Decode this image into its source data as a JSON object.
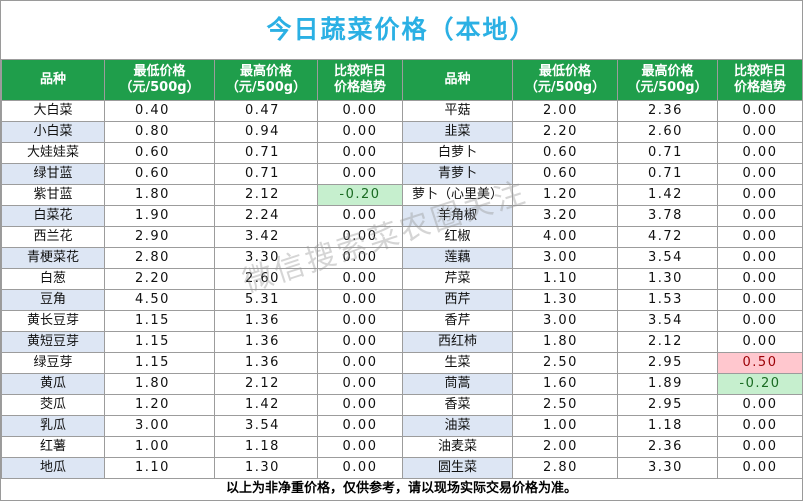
{
  "title": "今日蔬菜价格（本地）",
  "headers": {
    "name": "品种",
    "low": [
      "最低价格",
      "（元/500g）"
    ],
    "high": [
      "最高价格",
      "（元/500g）"
    ],
    "trend": [
      "比较昨日",
      "价格趋势"
    ]
  },
  "left": [
    {
      "name": "大白菜",
      "low": "0.40",
      "high": "0.47",
      "trend": "0.00"
    },
    {
      "name": "小白菜",
      "low": "0.80",
      "high": "0.94",
      "trend": "0.00"
    },
    {
      "name": "大娃娃菜",
      "low": "0.60",
      "high": "0.71",
      "trend": "0.00"
    },
    {
      "name": "绿甘蓝",
      "low": "0.60",
      "high": "0.71",
      "trend": "0.00"
    },
    {
      "name": "紫甘蓝",
      "low": "1.80",
      "high": "2.12",
      "trend": "-0.20"
    },
    {
      "name": "白菜花",
      "low": "1.90",
      "high": "2.24",
      "trend": "0.00"
    },
    {
      "name": "西兰花",
      "low": "2.90",
      "high": "3.42",
      "trend": "0.00"
    },
    {
      "name": "青梗菜花",
      "low": "2.80",
      "high": "3.30",
      "trend": "0.00"
    },
    {
      "name": "白葱",
      "low": "2.20",
      "high": "2.60",
      "trend": "0.00"
    },
    {
      "name": "豆角",
      "low": "4.50",
      "high": "5.31",
      "trend": "0.00"
    },
    {
      "name": "黄长豆芽",
      "low": "1.15",
      "high": "1.36",
      "trend": "0.00"
    },
    {
      "name": "黄短豆芽",
      "low": "1.15",
      "high": "1.36",
      "trend": "0.00"
    },
    {
      "name": "绿豆芽",
      "low": "1.15",
      "high": "1.36",
      "trend": "0.00"
    },
    {
      "name": "黄瓜",
      "low": "1.80",
      "high": "2.12",
      "trend": "0.00"
    },
    {
      "name": "茭瓜",
      "low": "1.20",
      "high": "1.42",
      "trend": "0.00"
    },
    {
      "name": "乳瓜",
      "low": "3.00",
      "high": "3.54",
      "trend": "0.00"
    },
    {
      "name": "红薯",
      "low": "1.00",
      "high": "1.18",
      "trend": "0.00"
    },
    {
      "name": "地瓜",
      "low": "1.10",
      "high": "1.30",
      "trend": "0.00"
    }
  ],
  "right": [
    {
      "name": "平菇",
      "low": "2.00",
      "high": "2.36",
      "trend": "0.00"
    },
    {
      "name": "韭菜",
      "low": "2.20",
      "high": "2.60",
      "trend": "0.00"
    },
    {
      "name": "白萝卜",
      "low": "0.60",
      "high": "0.71",
      "trend": "0.00"
    },
    {
      "name": "青萝卜",
      "low": "0.60",
      "high": "0.71",
      "trend": "0.00"
    },
    {
      "name": "萝卜（心里美）",
      "low": "1.20",
      "high": "1.42",
      "trend": "0.00"
    },
    {
      "name": "羊角椒",
      "low": "3.20",
      "high": "3.78",
      "trend": "0.00"
    },
    {
      "name": "红椒",
      "low": "4.00",
      "high": "4.72",
      "trend": "0.00"
    },
    {
      "name": "莲藕",
      "low": "3.00",
      "high": "3.54",
      "trend": "0.00"
    },
    {
      "name": "芹菜",
      "low": "1.10",
      "high": "1.30",
      "trend": "0.00"
    },
    {
      "name": "西芹",
      "low": "1.30",
      "high": "1.53",
      "trend": "0.00"
    },
    {
      "name": "香芹",
      "low": "3.00",
      "high": "3.54",
      "trend": "0.00"
    },
    {
      "name": "西红柿",
      "low": "1.80",
      "high": "2.12",
      "trend": "0.00"
    },
    {
      "name": "生菜",
      "low": "2.50",
      "high": "2.95",
      "trend": "0.50"
    },
    {
      "name": "茼蒿",
      "low": "1.60",
      "high": "1.89",
      "trend": "-0.20"
    },
    {
      "name": "香菜",
      "low": "2.50",
      "high": "2.95",
      "trend": "0.00"
    },
    {
      "name": "油菜",
      "low": "1.00",
      "high": "1.18",
      "trend": "0.00"
    },
    {
      "name": "油麦菜",
      "low": "2.00",
      "high": "2.36",
      "trend": "0.00"
    },
    {
      "name": "圆生菜",
      "low": "2.80",
      "high": "3.30",
      "trend": "0.00"
    }
  ],
  "footer": "以上为非净重价格，仅供参考，请以现场实际交易价格为准。",
  "watermark": "微信搜索菜农圈关注",
  "colors": {
    "title": "#2bb0e4",
    "header_bg": "#1f9e4b",
    "row_alt": "#dde6f4",
    "down_bg": "#c6efce",
    "up_bg": "#ffc7ce"
  }
}
